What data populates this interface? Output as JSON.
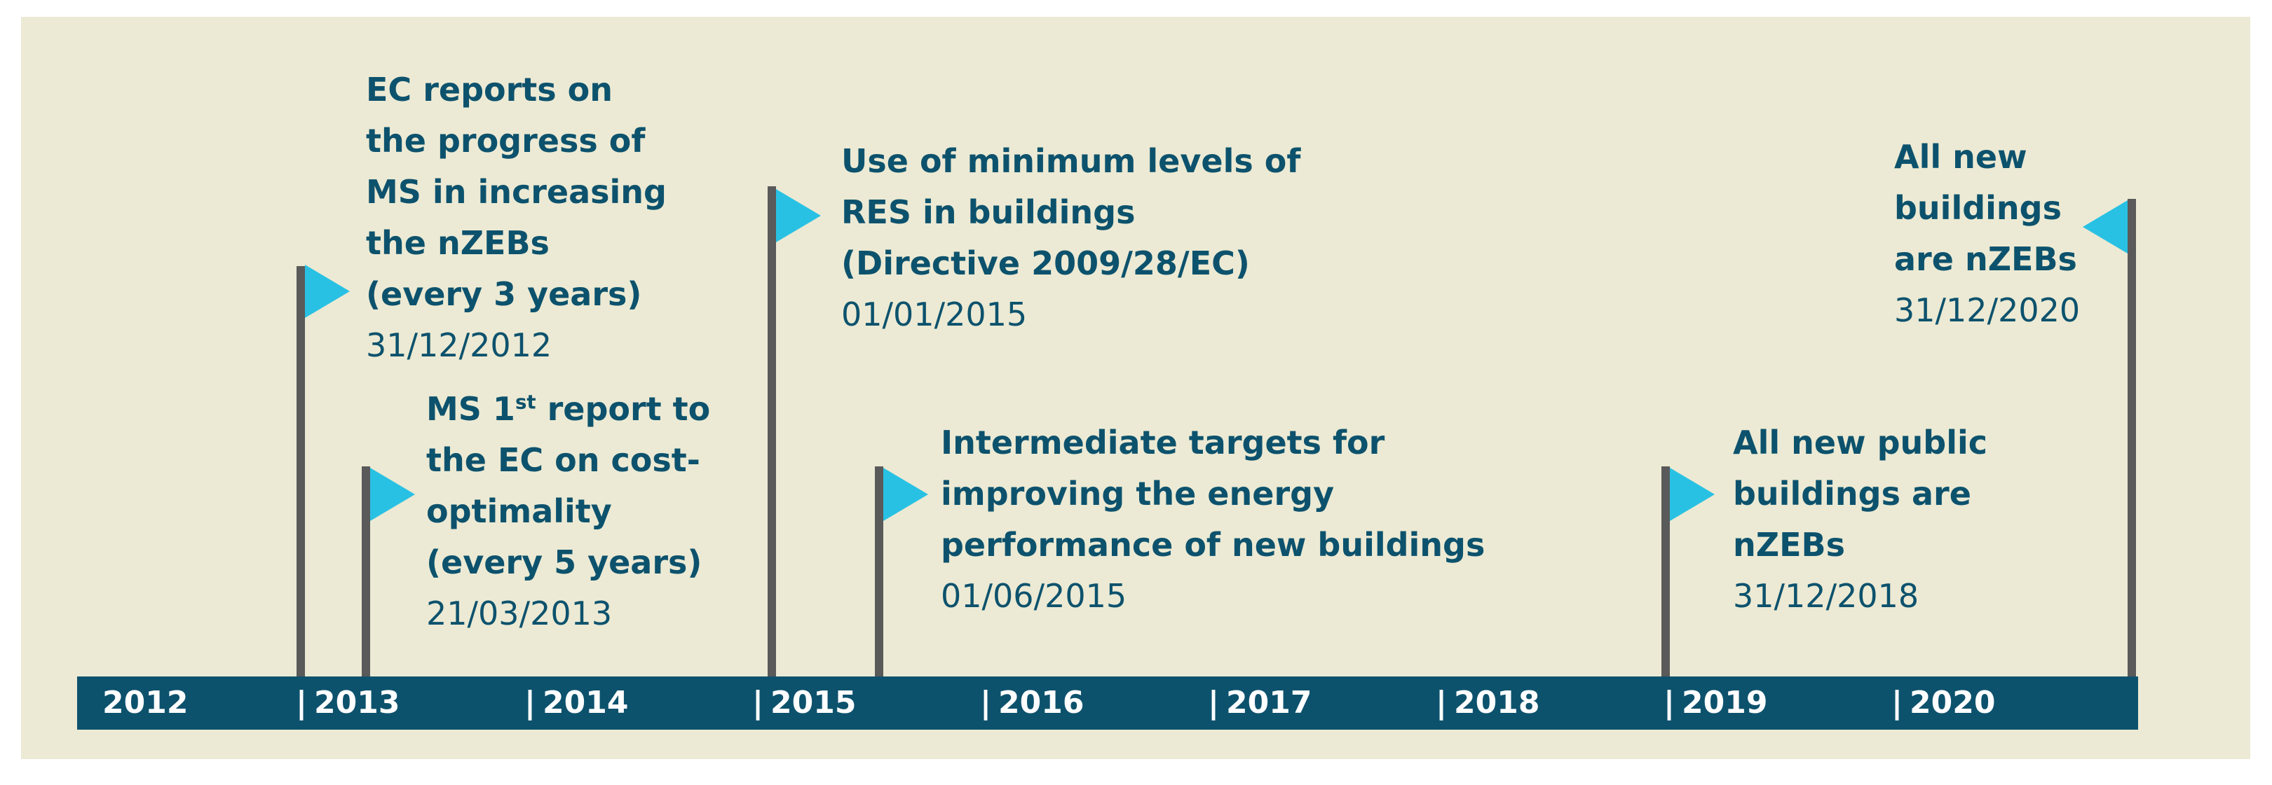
{
  "timeline": {
    "years": [
      "2012",
      "2013",
      "2014",
      "2015",
      "2016",
      "2017",
      "2018",
      "2019",
      "2020"
    ],
    "separator": "|"
  },
  "milestones": [
    {
      "title_lines": [
        "EC reports on",
        "the progress of",
        "MS in increasing",
        "the nZEBs",
        "(every 3 years)"
      ],
      "date": "31/12/2012"
    },
    {
      "title_lines_rich": [
        {
          "prefix": "MS 1",
          "sup": "st",
          "suffix": " report to"
        },
        {
          "prefix": "the EC on cost-"
        },
        {
          "prefix": "optimality"
        },
        {
          "prefix": "(every 5 years)"
        }
      ],
      "date": "21/03/2013"
    },
    {
      "title_lines": [
        "Use of minimum levels of",
        "RES in buildings",
        "(Directive 2009/28/EC)"
      ],
      "date": "01/01/2015"
    },
    {
      "title_lines": [
        "Intermediate targets for",
        "improving the energy",
        "performance of new buildings"
      ],
      "date": "01/06/2015"
    },
    {
      "title_lines": [
        "All new public",
        "buildings are",
        "nZEBs"
      ],
      "date": "31/12/2018"
    },
    {
      "title_lines": [
        "All new",
        "buildings",
        "are nZEBs"
      ],
      "date": "31/12/2020"
    }
  ],
  "colors": {
    "background": "#ecead4",
    "timeline_bar": "#0d526d",
    "text": "#0d526d",
    "pole": "#5a5a5a",
    "flag": "#29c1e3"
  }
}
